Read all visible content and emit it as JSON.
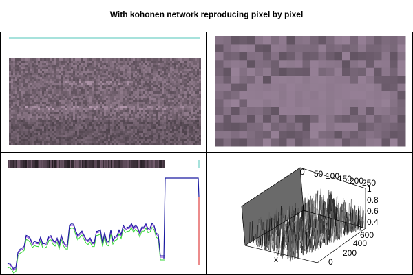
{
  "figure": {
    "title": "With kohonen network reproducing pixel by pixel"
  },
  "panels": {
    "original_image": {
      "kind": "grayscale-photo"
    },
    "som_reconstruction": {
      "kind": "pixelated-grid"
    },
    "profile_plot": {
      "kind": "line-plot"
    },
    "surface_plot": {
      "kind": "3d-surface",
      "x_label": "x",
      "x_ticks": [
        "0",
        "200",
        "400",
        "600"
      ],
      "y_ticks": [
        "0",
        "50",
        "100",
        "150",
        "200",
        "250"
      ],
      "z_ticks": [
        "0.4",
        "0.6",
        "0.8",
        "1"
      ]
    }
  },
  "colors": {
    "image_tone": "#7a6876",
    "grid_light": "#a08aa0",
    "grid_dark": "#4d3d4c",
    "line_blue": "#1a1aa0",
    "line_purple": "#7b3ad0",
    "line_green": "#33d633",
    "line_red": "#e04040",
    "top_rule": "#4fc4b8"
  }
}
